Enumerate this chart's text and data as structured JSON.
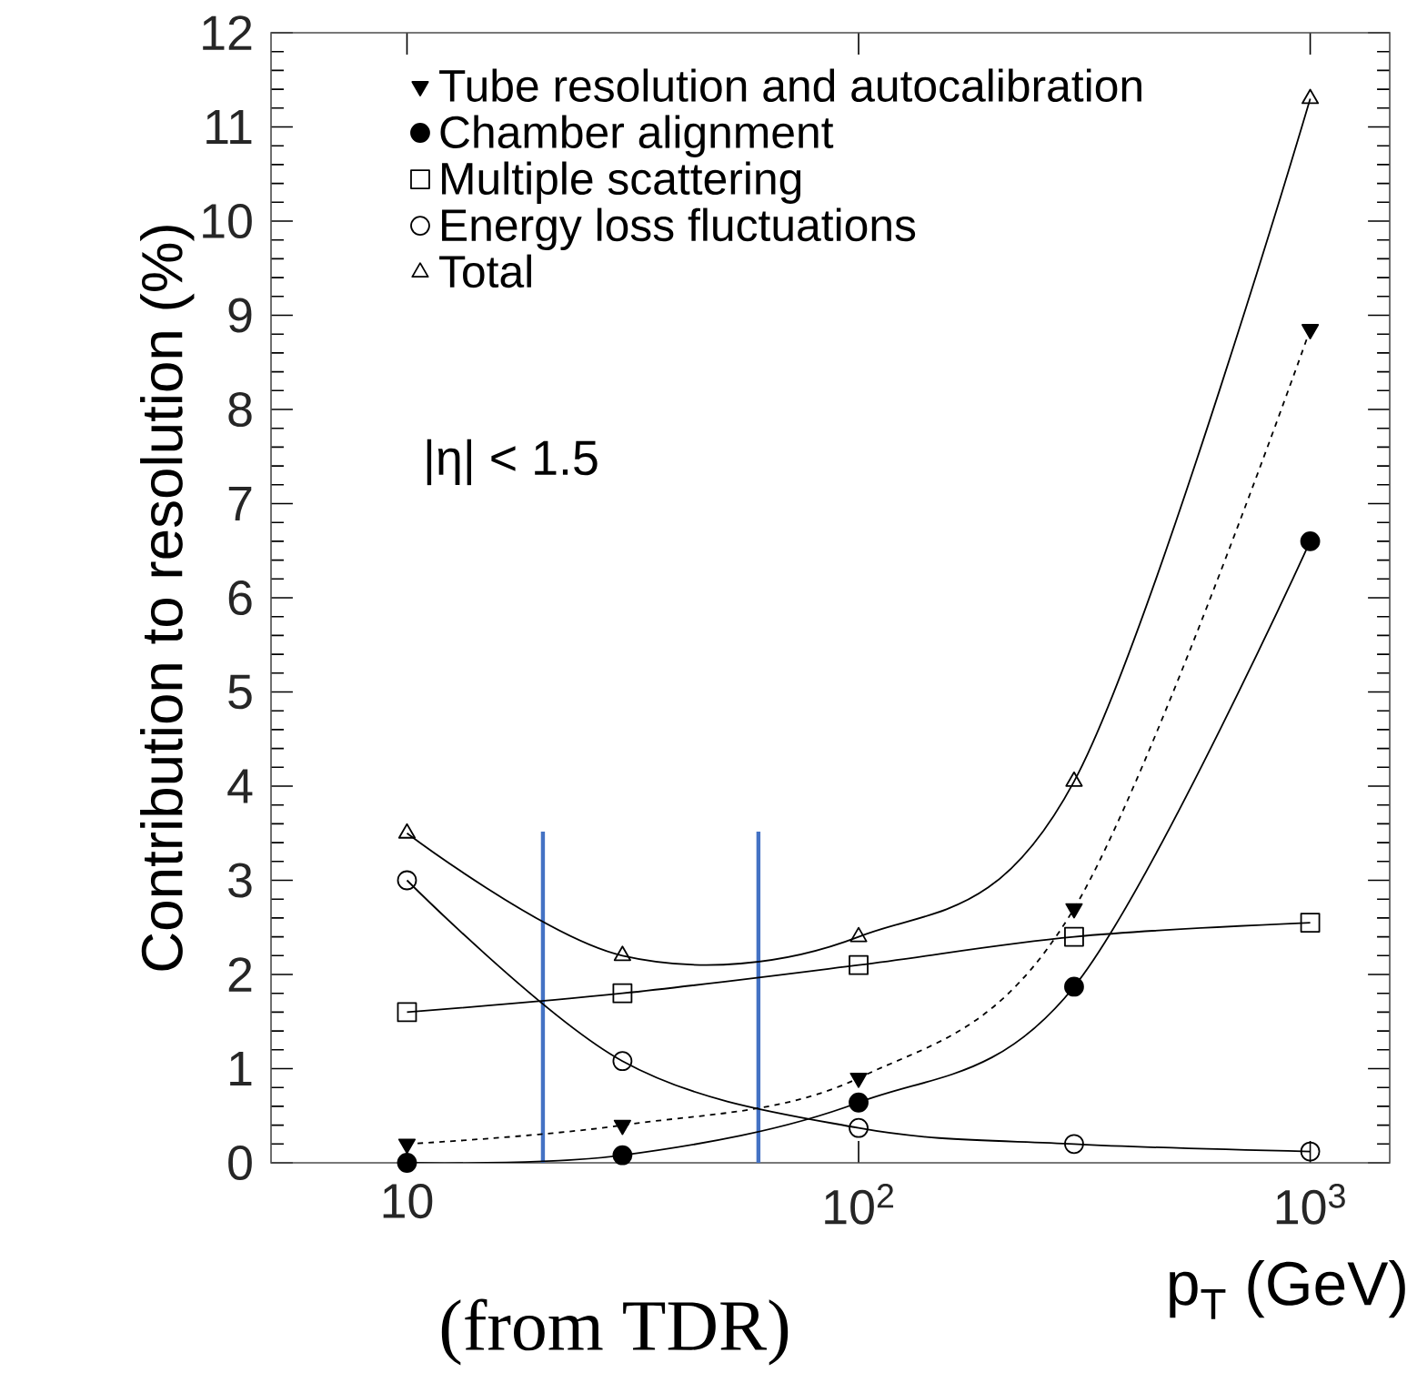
{
  "chart_data": {
    "type": "line",
    "xlabel": "p$_{T}$ (GeV)",
    "ylabel": "Contribution to resolution (%)",
    "annotations": [
      "|η| < 1.5",
      "(from TDR)"
    ],
    "log": "x",
    "xlim": [
      5,
      1500
    ],
    "ylim": [
      0,
      12
    ],
    "xticks": [
      10,
      {
        "value": 100,
        "label": "10$^{2}$"
      },
      {
        "value": 1000,
        "label": "10$^{3}$"
      }
    ],
    "yticks": [
      0,
      1,
      2,
      3,
      4,
      5,
      6,
      7,
      8,
      9,
      10,
      11,
      12
    ],
    "x": [
      10,
      30,
      100,
      300,
      1000
    ],
    "legend": "top left",
    "grid": false,
    "ref_lines": [
      {
        "axis": "x",
        "value": 20,
        "color": "#4472c4"
      },
      {
        "axis": "x",
        "value": 60,
        "color": "#4472c4"
      }
    ],
    "series": [
      {
        "name": "Tube resolution and autocalibration",
        "color": "#000000",
        "marker": "triangle",
        "line_style": "dashed",
        "values": [
          0.2,
          0.4,
          0.9,
          2.7,
          8.85
        ]
      },
      {
        "name": "Chamber alignment",
        "color": "#000000",
        "marker": "circle",
        "line_style": "solid",
        "values": [
          0,
          0.08,
          0.64,
          1.87,
          6.6
        ]
      },
      {
        "name": "Multiple scattering",
        "color": "#000000",
        "marker": "square",
        "line_style": "solid",
        "values": [
          1.6,
          1.8,
          2.1,
          2.4,
          2.55
        ]
      },
      {
        "name": "Energy loss fluctuations",
        "color": "#000000",
        "marker": "circle",
        "line_style": "solid",
        "values": [
          3.0,
          1.08,
          0.37,
          0.2,
          0.12
        ]
      },
      {
        "name": "Total",
        "color": "#000000",
        "marker": "triangle",
        "line_style": "solid",
        "values": [
          3.5,
          2.2,
          2.4,
          4.05,
          11.3
        ]
      }
    ]
  }
}
